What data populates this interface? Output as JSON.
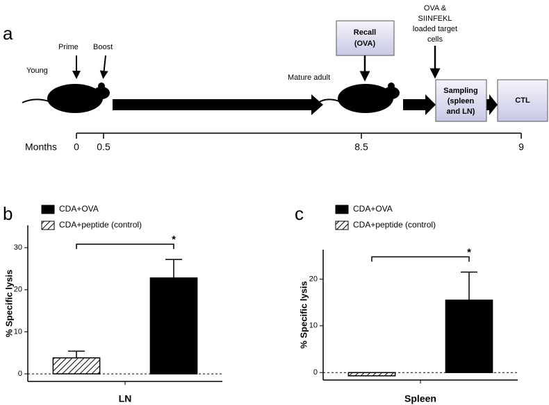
{
  "timeline": {
    "panel_label": "a",
    "young": "Young",
    "prime": "Prime",
    "boost": "Boost",
    "mature": "Mature adult",
    "recall": [
      "Recall",
      "(OVA)"
    ],
    "targets": [
      "OVA &",
      "SIINFEKL",
      "loaded target",
      "cells"
    ],
    "sampling": [
      "Sampling",
      "(spleen",
      "and LN)"
    ],
    "ctl": "CTL",
    "months_label": "Months",
    "months": [
      "0",
      "0.5",
      "8.5",
      "9"
    ]
  },
  "chart_data": [
    {
      "type": "bar",
      "panel_label": "b",
      "ylabel": "% Specific lysis",
      "xlabel": "LN",
      "categories": [
        null,
        null
      ],
      "series": [
        {
          "name": "CDA+OVA",
          "color": "#000000",
          "hatch": false,
          "values": [
            null,
            22.8
          ],
          "errors": [
            null,
            4.4
          ]
        },
        {
          "name": "CDA+peptide (control)",
          "color": "#000000",
          "hatch": true,
          "values": [
            3.8,
            null
          ],
          "errors": [
            1.6,
            null
          ]
        }
      ],
      "ylim": [
        -1.8,
        35.3
      ],
      "yticks": [
        0,
        10,
        20,
        30
      ],
      "zero_line": true,
      "significance": "*",
      "legend": "upper left"
    },
    {
      "type": "bar",
      "panel_label": "c",
      "ylabel": "% Specific lysis",
      "xlabel": "Spleen",
      "categories": [
        null,
        null
      ],
      "series": [
        {
          "name": "CDA+OVA",
          "color": "#000000",
          "hatch": false,
          "values": [
            null,
            15.5
          ],
          "errors": [
            null,
            6.0
          ]
        },
        {
          "name": "CDA+peptide (control)",
          "color": "#000000",
          "hatch": true,
          "values": [
            -0.7,
            null
          ],
          "errors": [
            null,
            null
          ]
        }
      ],
      "ylim": [
        -1.6,
        26.3
      ],
      "yticks": [
        0,
        10,
        20
      ],
      "zero_line": true,
      "significance": "*",
      "legend": "upper left"
    }
  ]
}
